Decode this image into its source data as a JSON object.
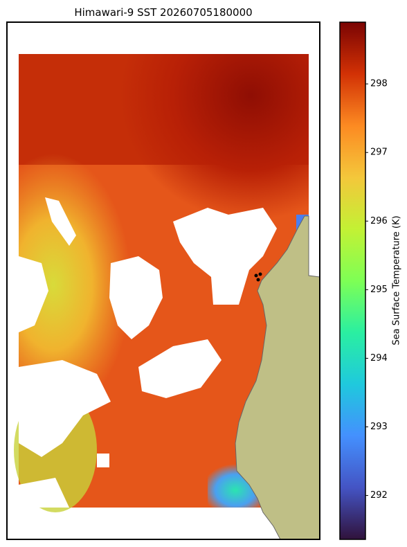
{
  "map": {
    "title": "Himawari-9 SST 20260705180000",
    "colorbar": {
      "label": "Sea Surface Temperature (K)",
      "clim": [
        291.36,
        298.9
      ],
      "ticks": [
        292,
        293,
        294,
        295,
        296,
        297,
        298
      ]
    }
  }
}
